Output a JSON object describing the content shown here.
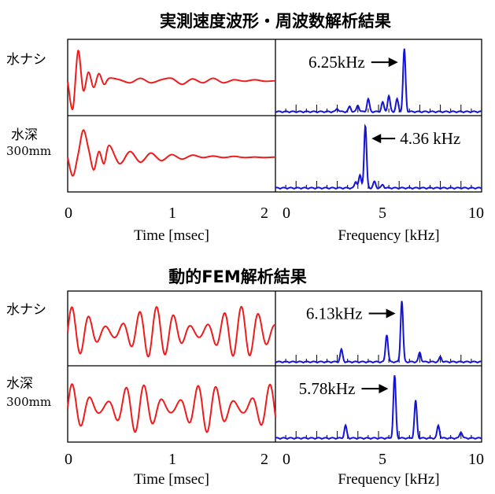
{
  "chart_data": {
    "type": "line",
    "colors": {
      "time": "#ee1c1c",
      "spectrum": "#1414d8",
      "frame": "#000000"
    },
    "sections": [
      {
        "title": "実測速度波形・周波数解析結果",
        "rows": [
          {
            "label": "水ナシ",
            "sublabel": "",
            "time": {
              "x": [
                0,
                0.05,
                0.1,
                0.15,
                0.2,
                0.25,
                0.3,
                0.35,
                0.4,
                0.5,
                0.6,
                0.7,
                0.8,
                0.9,
                1.0,
                1.1,
                1.2,
                1.3,
                1.4,
                1.5,
                1.6,
                1.7,
                1.8,
                1.9,
                2.0
              ],
              "y": [
                0,
                -0.9,
                1.0,
                -0.3,
                0.3,
                -0.2,
                0.25,
                -0.1,
                0.1,
                0.05,
                -0.05,
                0.1,
                -0.05,
                0.05,
                0.1,
                -0.1,
                0.08,
                -0.05,
                0.1,
                -0.05,
                0.05,
                0.0,
                0.05,
                0.0,
                0.02
              ]
            },
            "spectrum": {
              "peaks": [
                {
                  "f": 6.25,
                  "a": 1.0
                },
                {
                  "f": 5.9,
                  "a": 0.2
                },
                {
                  "f": 5.5,
                  "a": 0.25
                },
                {
                  "f": 5.2,
                  "a": 0.15
                },
                {
                  "f": 4.5,
                  "a": 0.2
                },
                {
                  "f": 4.0,
                  "a": 0.1
                },
                {
                  "f": 3.6,
                  "a": 0.08
                },
                {
                  "f": 3.0,
                  "a": 0.05
                }
              ]
            },
            "annotation": {
              "text": "6.25kHz",
              "side": "left"
            }
          },
          {
            "label": "水深",
            "sublabel": "300mm",
            "time": {
              "x": [
                0,
                0.05,
                0.1,
                0.15,
                0.2,
                0.25,
                0.3,
                0.35,
                0.4,
                0.5,
                0.6,
                0.7,
                0.8,
                0.9,
                1.0,
                1.1,
                1.2,
                1.3,
                1.4,
                1.5,
                1.6,
                1.7,
                1.8,
                1.9,
                2.0
              ],
              "y": [
                0,
                -0.6,
                0.1,
                0.9,
                0.3,
                -0.4,
                0.2,
                -0.2,
                0.4,
                -0.2,
                0.2,
                -0.15,
                0.15,
                -0.1,
                0.1,
                -0.05,
                0.08,
                0.0,
                0.05,
                0.0,
                0.04,
                0.0,
                0.02,
                0.0,
                0.02
              ]
            },
            "spectrum": {
              "peaks": [
                {
                  "f": 4.36,
                  "a": 1.0
                },
                {
                  "f": 4.1,
                  "a": 0.2
                },
                {
                  "f": 3.9,
                  "a": 0.1
                },
                {
                  "f": 4.8,
                  "a": 0.1
                },
                {
                  "f": 5.2,
                  "a": 0.05
                }
              ]
            },
            "annotation": {
              "text": "4.36 kHz",
              "side": "right"
            }
          }
        ],
        "time_axis": {
          "min": 0,
          "max": 2,
          "ticks": [
            "0",
            "1",
            "2"
          ],
          "label": "Time [msec]"
        },
        "freq_axis": {
          "min": 0,
          "max": 10,
          "ticks": [
            "0",
            "5",
            "10"
          ],
          "label": "Frequency [kHz]"
        }
      },
      {
        "title": "動的FEM解析結果",
        "rows": [
          {
            "label": "水ナシ",
            "sublabel": "",
            "time": {
              "freq": 6.13,
              "amp": 0.85,
              "mod": 1.2
            },
            "spectrum": {
              "peaks": [
                {
                  "f": 6.13,
                  "a": 1.0
                },
                {
                  "f": 5.4,
                  "a": 0.45
                },
                {
                  "f": 3.2,
                  "a": 0.2
                },
                {
                  "f": 7.0,
                  "a": 0.15
                },
                {
                  "f": 8.0,
                  "a": 0.08
                }
              ]
            },
            "annotation": {
              "text": "6.13kHz",
              "side": "left"
            }
          },
          {
            "label": "水深",
            "sublabel": "300mm",
            "time": {
              "freq": 5.78,
              "amp": 0.8,
              "mod": 1.5
            },
            "spectrum": {
              "peaks": [
                {
                  "f": 5.78,
                  "a": 1.0
                },
                {
                  "f": 6.8,
                  "a": 0.6
                },
                {
                  "f": 3.4,
                  "a": 0.2
                },
                {
                  "f": 7.9,
                  "a": 0.2
                },
                {
                  "f": 9.0,
                  "a": 0.1
                }
              ]
            },
            "annotation": {
              "text": "5.78kHz",
              "side": "left"
            }
          }
        ],
        "time_axis": {
          "min": 0,
          "max": 2,
          "ticks": [
            "0",
            "1",
            "2"
          ],
          "label": "Time [msec]"
        },
        "freq_axis": {
          "min": 0,
          "max": 10,
          "ticks": [
            "0",
            "5",
            "10"
          ],
          "label": "Frequency [kHz]"
        }
      }
    ]
  }
}
